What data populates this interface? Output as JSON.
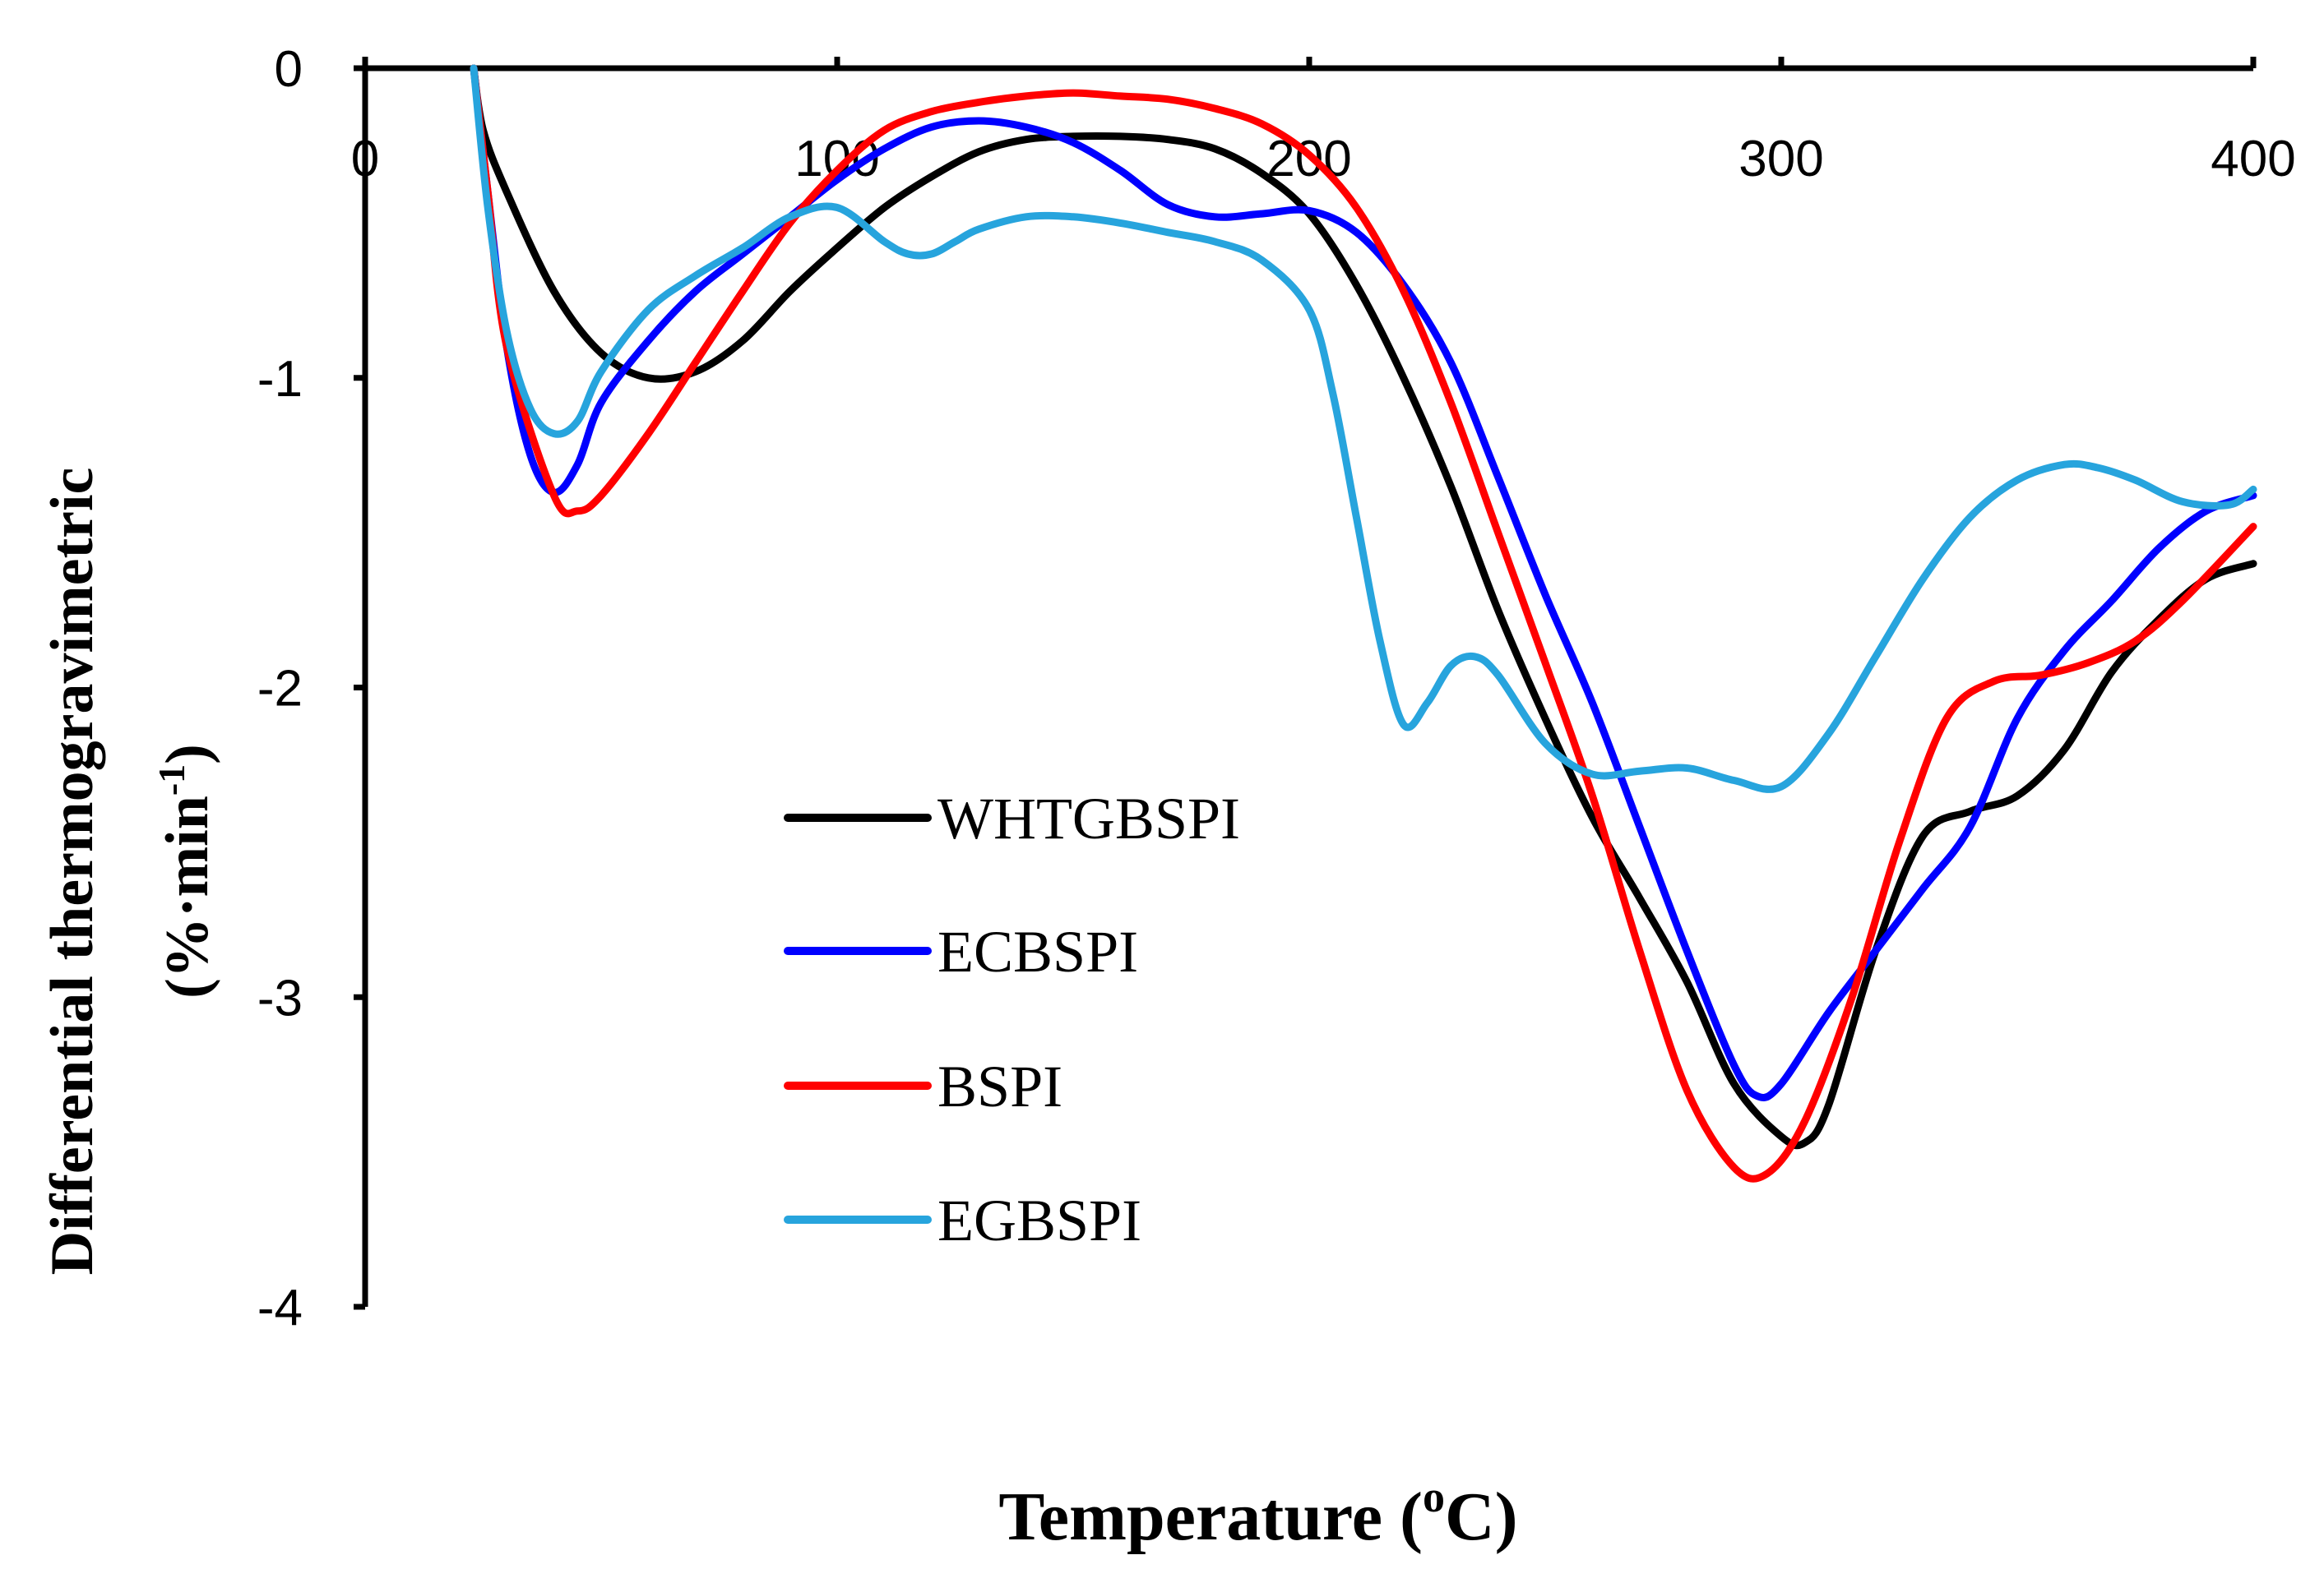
{
  "chart_data": {
    "type": "line",
    "title": "",
    "xlabel": "Temperature (",
    "xlabel_sup": "o",
    "xlabel_end": "C)",
    "ylabel_line1": "Differential thermogravimetric",
    "ylabel_line2": "(%·min",
    "ylabel_sup": "-1",
    "ylabel_end": ")",
    "xlim": [
      0,
      400
    ],
    "ylim": [
      -4,
      0
    ],
    "xticks": [
      "0",
      "100",
      "200",
      "300",
      "400"
    ],
    "yticks": [
      "0",
      "-1",
      "-2",
      "-3",
      "-4"
    ],
    "grid": false,
    "legend": "center-left",
    "series": [
      {
        "name": "WHTGBSPI",
        "color": "#000000",
        "x": [
          23,
          25,
          30,
          40,
          50,
          60,
          70,
          80,
          90,
          100,
          110,
          120,
          130,
          140,
          150,
          160,
          170,
          180,
          190,
          200,
          210,
          220,
          230,
          240,
          250,
          260,
          270,
          280,
          290,
          300,
          305,
          310,
          320,
          330,
          340,
          350,
          360,
          370,
          380,
          390,
          400
        ],
        "y": [
          0,
          -0.2,
          -0.4,
          -0.72,
          -0.92,
          -1.0,
          -0.98,
          -0.88,
          -0.72,
          -0.58,
          -0.45,
          -0.35,
          -0.27,
          -0.23,
          -0.22,
          -0.22,
          -0.23,
          -0.26,
          -0.34,
          -0.47,
          -0.7,
          -1.0,
          -1.35,
          -1.75,
          -2.1,
          -2.42,
          -2.68,
          -2.95,
          -3.28,
          -3.45,
          -3.47,
          -3.35,
          -2.85,
          -2.48,
          -2.4,
          -2.35,
          -2.2,
          -1.95,
          -1.78,
          -1.65,
          -1.6
        ]
      },
      {
        "name": "ECBSPI",
        "color": "#0000ff",
        "x": [
          23,
          26,
          30,
          35,
          40,
          45,
          50,
          60,
          70,
          80,
          90,
          100,
          110,
          120,
          130,
          140,
          150,
          160,
          170,
          180,
          190,
          200,
          210,
          220,
          230,
          240,
          250,
          260,
          270,
          280,
          290,
          295,
          300,
          310,
          320,
          330,
          340,
          350,
          360,
          370,
          380,
          390,
          400
        ],
        "y": [
          0,
          -0.4,
          -0.9,
          -1.25,
          -1.37,
          -1.28,
          -1.08,
          -0.88,
          -0.72,
          -0.6,
          -0.48,
          -0.36,
          -0.26,
          -0.19,
          -0.17,
          -0.19,
          -0.24,
          -0.33,
          -0.44,
          -0.48,
          -0.47,
          -0.46,
          -0.53,
          -0.7,
          -0.95,
          -1.32,
          -1.7,
          -2.05,
          -2.45,
          -2.85,
          -3.22,
          -3.32,
          -3.28,
          -3.05,
          -2.85,
          -2.65,
          -2.45,
          -2.1,
          -1.88,
          -1.72,
          -1.55,
          -1.43,
          -1.38
        ]
      },
      {
        "name": "BSPI",
        "color": "#ff0000",
        "x": [
          23,
          26,
          30,
          40,
          45,
          50,
          60,
          70,
          80,
          90,
          100,
          110,
          120,
          130,
          140,
          150,
          160,
          170,
          180,
          190,
          200,
          210,
          220,
          230,
          240,
          250,
          260,
          270,
          280,
          290,
          297,
          305,
          315,
          325,
          335,
          345,
          355,
          365,
          375,
          385,
          400
        ],
        "y": [
          0,
          -0.4,
          -0.9,
          -1.38,
          -1.43,
          -1.38,
          -1.18,
          -0.95,
          -0.72,
          -0.5,
          -0.33,
          -0.2,
          -0.14,
          -0.11,
          -0.09,
          -0.08,
          -0.09,
          -0.1,
          -0.13,
          -0.18,
          -0.28,
          -0.45,
          -0.72,
          -1.08,
          -1.5,
          -1.92,
          -2.35,
          -2.85,
          -3.3,
          -3.55,
          -3.57,
          -3.4,
          -3.0,
          -2.5,
          -2.1,
          -1.98,
          -1.96,
          -1.92,
          -1.85,
          -1.72,
          -1.48
        ]
      },
      {
        "name": "EGBSPI",
        "color": "#27a4dd",
        "x": [
          23,
          26,
          30,
          35,
          40,
          45,
          50,
          60,
          70,
          80,
          90,
          100,
          110,
          115,
          120,
          125,
          130,
          140,
          150,
          160,
          170,
          180,
          190,
          200,
          205,
          210,
          215,
          220,
          225,
          230,
          235,
          240,
          250,
          260,
          270,
          280,
          290,
          300,
          310,
          320,
          330,
          340,
          350,
          360,
          367,
          375,
          385,
          395,
          400
        ],
        "y": [
          0,
          -0.45,
          -0.85,
          -1.1,
          -1.18,
          -1.14,
          -0.98,
          -0.78,
          -0.67,
          -0.58,
          -0.48,
          -0.45,
          -0.56,
          -0.6,
          -0.6,
          -0.56,
          -0.52,
          -0.48,
          -0.48,
          -0.5,
          -0.53,
          -0.56,
          -0.62,
          -0.78,
          -1.05,
          -1.45,
          -1.85,
          -2.12,
          -2.05,
          -1.93,
          -1.9,
          -1.96,
          -2.18,
          -2.28,
          -2.27,
          -2.26,
          -2.3,
          -2.32,
          -2.15,
          -1.9,
          -1.65,
          -1.45,
          -1.33,
          -1.28,
          -1.29,
          -1.33,
          -1.4,
          -1.41,
          -1.36
        ]
      }
    ]
  }
}
